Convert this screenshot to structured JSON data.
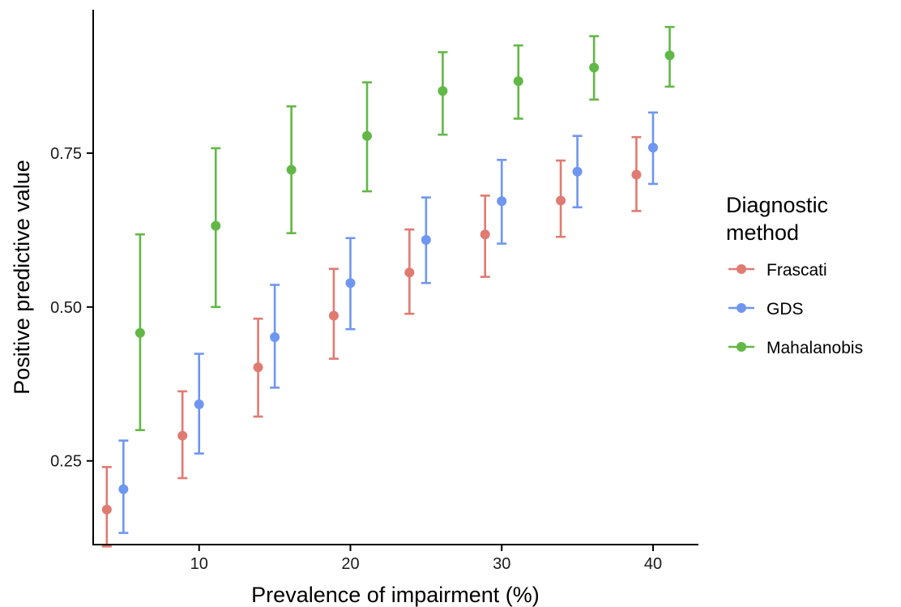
{
  "chart_data": {
    "type": "scatter",
    "title": "",
    "xlabel": "Prevalence of impairment (%)",
    "ylabel": "Positive predictive value",
    "xlim": [
      3,
      43
    ],
    "ylim": [
      0.114,
      0.983
    ],
    "x_ticks": [
      10,
      20,
      30,
      40
    ],
    "y_ticks": [
      0.25,
      0.5,
      0.75
    ],
    "x_tick_labels": [
      "10",
      "20",
      "30",
      "40"
    ],
    "y_tick_labels": [
      "0.25",
      "0.50",
      "0.75"
    ],
    "grid": false,
    "legend_title_lines": [
      "Diagnostic",
      "method"
    ],
    "legend_position": "right",
    "error_bars": true,
    "series": [
      {
        "name": "Frascati",
        "color": "#E07B72",
        "x": [
          5,
          10,
          15,
          20,
          25,
          30,
          35,
          40
        ],
        "y": [
          0.171,
          0.291,
          0.402,
          0.486,
          0.556,
          0.618,
          0.673,
          0.715
        ],
        "ymin": [
          0.111,
          0.222,
          0.322,
          0.416,
          0.489,
          0.549,
          0.614,
          0.656
        ],
        "ymax": [
          0.24,
          0.363,
          0.481,
          0.562,
          0.626,
          0.681,
          0.738,
          0.776
        ]
      },
      {
        "name": "GDS",
        "color": "#6F96F0",
        "x": [
          5,
          10,
          15,
          20,
          25,
          30,
          35,
          40
        ],
        "y": [
          0.204,
          0.342,
          0.451,
          0.539,
          0.609,
          0.672,
          0.72,
          0.759
        ],
        "ymin": [
          0.133,
          0.262,
          0.369,
          0.464,
          0.539,
          0.603,
          0.662,
          0.7
        ],
        "ymax": [
          0.283,
          0.424,
          0.536,
          0.612,
          0.678,
          0.739,
          0.778,
          0.816
        ]
      },
      {
        "name": "Mahalanobis",
        "color": "#62B846",
        "x": [
          5,
          10,
          15,
          20,
          25,
          30,
          35,
          40
        ],
        "y": [
          0.458,
          0.632,
          0.723,
          0.778,
          0.851,
          0.867,
          0.889,
          0.909
        ],
        "ymin": [
          0.3,
          0.5,
          0.62,
          0.688,
          0.78,
          0.806,
          0.837,
          0.858
        ],
        "ymax": [
          0.618,
          0.758,
          0.826,
          0.865,
          0.914,
          0.925,
          0.94,
          0.955
        ]
      }
    ]
  }
}
